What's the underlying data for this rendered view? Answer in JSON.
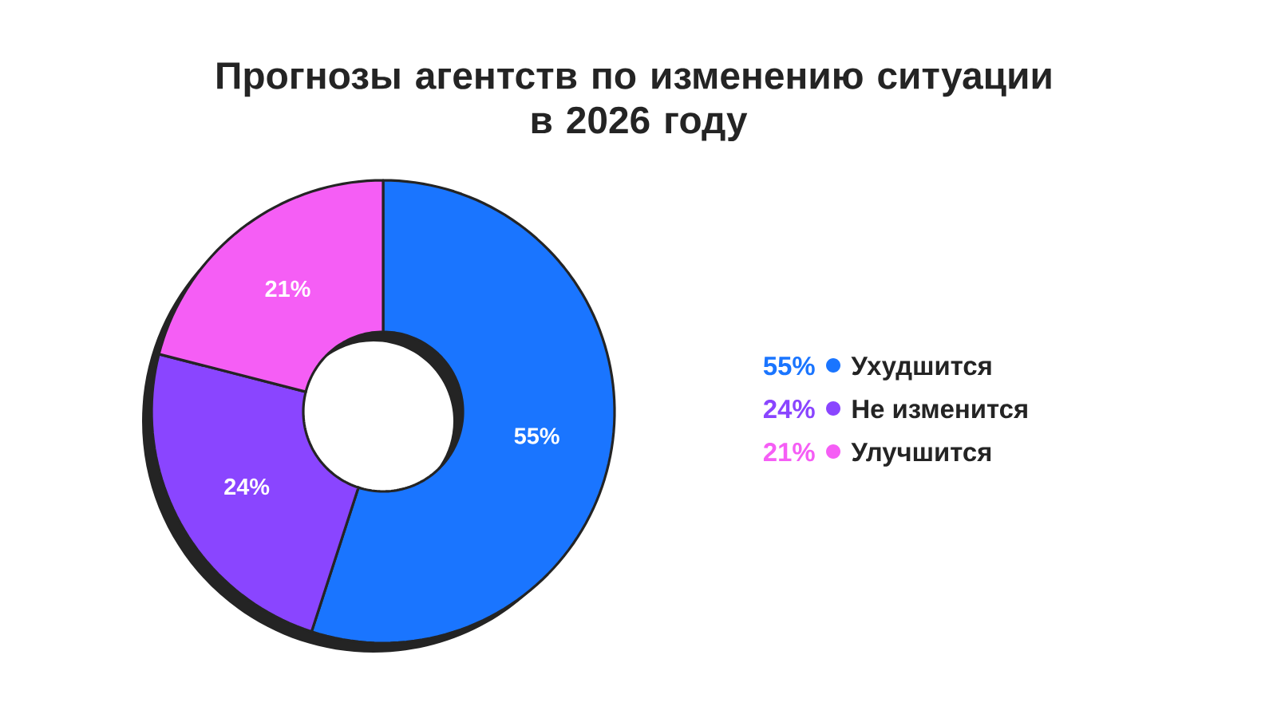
{
  "chart_data": {
    "type": "donut",
    "title": "Прогнозы агентств по изменению ситуации в 2026 году",
    "categories": [
      "Ухудшится",
      "Не изменится",
      "Улучшится"
    ],
    "values": [
      55,
      24,
      21
    ],
    "colors": [
      "#1a75ff",
      "#8a45ff",
      "#f55ef5"
    ],
    "value_labels": [
      "55%",
      "24%",
      "21%"
    ],
    "legend": "right"
  }
}
